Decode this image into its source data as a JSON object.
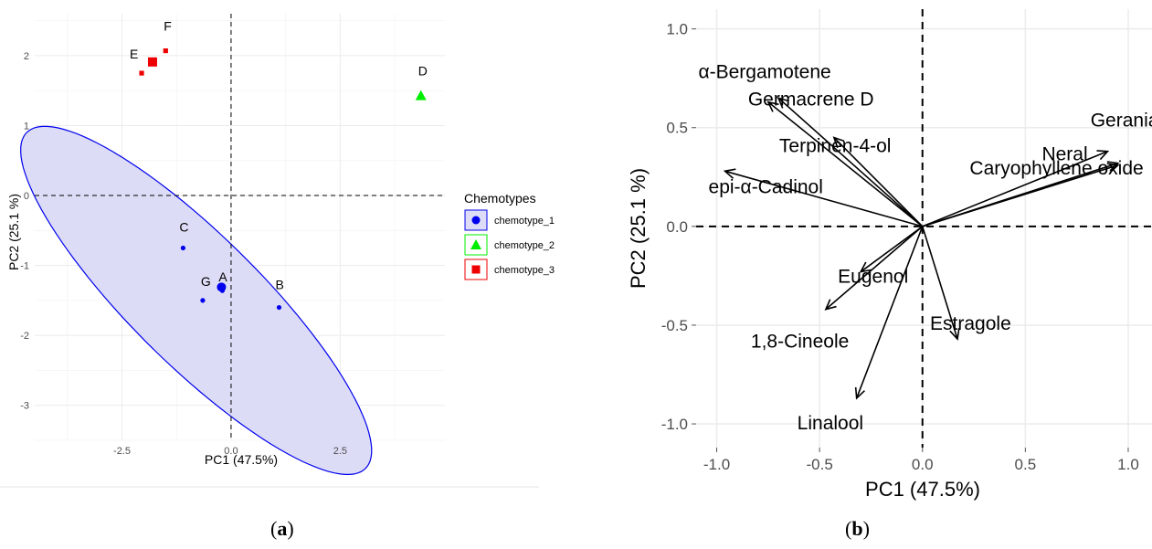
{
  "panel_a_label": "a",
  "panel_b_label": "b",
  "chart_data": [
    {
      "type": "scatter",
      "xlabel": "PC1 (47.5%)",
      "ylabel": "PC2 (25.1 %)",
      "xlim": [
        -4.5,
        4.9
      ],
      "ylim": [
        -3.5,
        2.6
      ],
      "x_ticks": [
        -2.5,
        0.0,
        2.5
      ],
      "x_tick_labels": [
        "-2.5",
        "0.0",
        "2.5"
      ],
      "y_ticks": [
        -3,
        -2,
        -1,
        0,
        1,
        2
      ],
      "y_tick_labels": [
        "-3",
        "-2",
        "-1",
        "0",
        "1",
        "2"
      ],
      "grid": true,
      "reference_lines": {
        "x": 0,
        "y": 0,
        "style": "dashed"
      },
      "legend": {
        "title": "Chemotypes",
        "placement": "right",
        "entries": [
          {
            "label": "chemotype_1",
            "color": "#0000ee",
            "shape": "circle"
          },
          {
            "label": "chemotype_2",
            "color": "#00ee00",
            "shape": "triangle"
          },
          {
            "label": "chemotype_3",
            "color": "#ee0000",
            "shape": "square"
          }
        ]
      },
      "series": [
        {
          "name": "chemotype_1",
          "color": "#0000ee",
          "shape": "circle",
          "points": [
            {
              "label": "A",
              "x": -0.2,
              "y": -1.36
            },
            {
              "label": "B",
              "x": 1.1,
              "y": -1.6
            },
            {
              "label": "C",
              "x": -1.1,
              "y": -0.75
            },
            {
              "label": "G",
              "x": -0.65,
              "y": -1.5
            }
          ],
          "centroid": {
            "x": -0.22,
            "y": -1.31
          },
          "ellipse": {
            "center": [
              -0.8,
              -1.5
            ],
            "semi_major": 4.6,
            "semi_minor": 1.1,
            "angle_deg": -30
          },
          "ellipse_fill": "#dcdcf7",
          "ellipse_stroke": "#0000ee"
        },
        {
          "name": "chemotype_2",
          "color": "#00ee00",
          "shape": "triangle",
          "points": [
            {
              "label": "D",
              "x": 4.35,
              "y": 1.43
            }
          ]
        },
        {
          "name": "chemotype_3",
          "color": "#ee0000",
          "shape": "square",
          "points": [
            {
              "label": "E",
              "x": -2.05,
              "y": 1.75
            },
            {
              "label": "F",
              "x": -1.5,
              "y": 2.07
            }
          ],
          "centroid": {
            "x": -1.8,
            "y": 1.91
          }
        }
      ]
    },
    {
      "type": "biplot",
      "xlabel": "PC1 (47.5%)",
      "ylabel": "PC2 (25.1 %)",
      "xlim": [
        -1.1,
        1.12
      ],
      "ylim": [
        -1.12,
        1.1
      ],
      "x_ticks": [
        -1.0,
        -0.5,
        0.0,
        0.5,
        1.0
      ],
      "x_tick_labels": [
        "-1.0",
        "-0.5",
        "0.0",
        "0.5",
        "1.0"
      ],
      "y_ticks": [
        -1.0,
        -0.5,
        0.0,
        0.5,
        1.0
      ],
      "y_tick_labels": [
        "-1.0",
        "-0.5",
        "0.0",
        "0.5",
        "1.0"
      ],
      "grid": true,
      "reference_lines": {
        "x": 0,
        "y": 0,
        "style": "dashed"
      },
      "vectors": [
        {
          "label": "α-Bergamotene",
          "x": -0.7,
          "y": 0.65
        },
        {
          "label": "Germacrene D",
          "x": -0.75,
          "y": 0.63
        },
        {
          "label": "Terpinen-4-ol",
          "x": -0.43,
          "y": 0.45
        },
        {
          "label": "epi-α-Cadinol",
          "x": -0.96,
          "y": 0.28
        },
        {
          "label": "Geranial",
          "x": 0.95,
          "y": 0.32
        },
        {
          "label": "Neral",
          "x": 0.9,
          "y": 0.38
        },
        {
          "label": "Caryophyllene oxide",
          "x": 0.95,
          "y": 0.31
        },
        {
          "label": "Eugenol",
          "x": -0.3,
          "y": -0.23
        },
        {
          "label": "1,8-Cineole",
          "x": -0.47,
          "y": -0.42
        },
        {
          "label": "Estragole",
          "x": 0.17,
          "y": -0.57
        },
        {
          "label": "Linalool",
          "x": -0.32,
          "y": -0.87
        }
      ]
    }
  ]
}
